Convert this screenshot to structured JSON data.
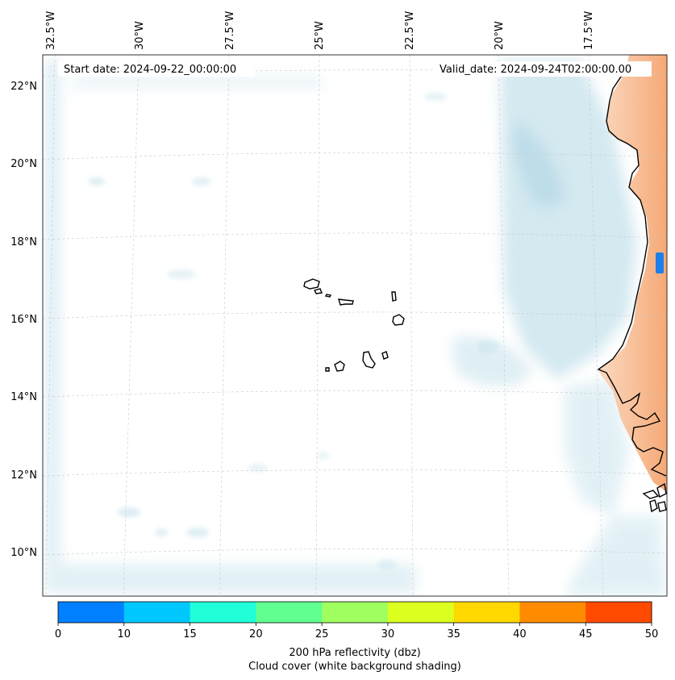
{
  "map": {
    "start_date_label": "Start date: 2024-09-22_00:00:00",
    "valid_date_label": "Valid_date: 2024-09-24T02:00:00.00",
    "longitude_labels": [
      "32.5°W",
      "30°W",
      "27.5°W",
      "25°W",
      "22.5°W",
      "20°W",
      "17.5°W"
    ],
    "latitude_labels": [
      "22°N",
      "20°N",
      "18°N",
      "16°N",
      "14°N",
      "12°N",
      "10°N"
    ],
    "features": [
      "Cape Verde islands",
      "West African coastline"
    ]
  },
  "colorbar": {
    "ticks": [
      "0",
      "10",
      "15",
      "20",
      "25",
      "30",
      "35",
      "40",
      "45",
      "50"
    ],
    "colors": [
      "#0080ff",
      "#00c8ff",
      "#20ffd8",
      "#60ff90",
      "#a0ff60",
      "#dcff20",
      "#ffd800",
      "#ff8c00",
      "#ff4a00"
    ],
    "label_line1": "200 hPa reflectivity (dbz)",
    "label_line2": "Cloud cover (white background shading)"
  },
  "colors": {
    "cloud": "#c6e2ec",
    "land": "#f6a46e",
    "coast": "#000000",
    "reflectivity_cell": "#1e7fe8"
  }
}
